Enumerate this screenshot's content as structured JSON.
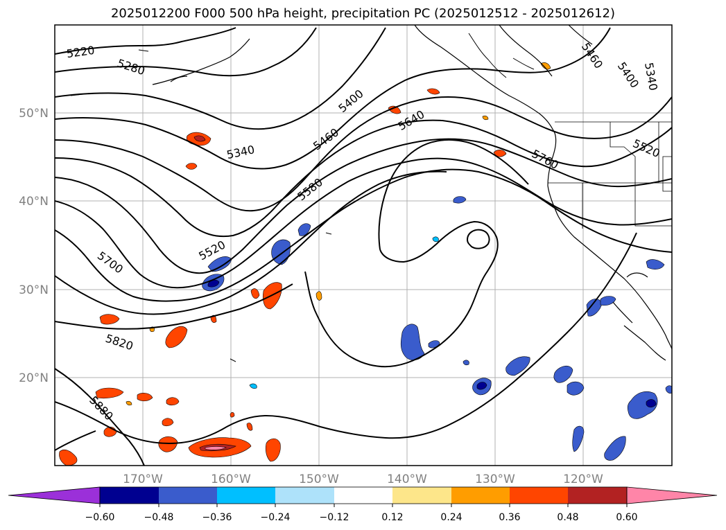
{
  "title": "2025012200 F000 500 hPa height, precipitation PC (2025012512 - 2025012612)",
  "map": {
    "lat_labels": [
      "50°N",
      "40°N",
      "30°N",
      "20°N"
    ],
    "lon_labels": [
      "170°W",
      "160°W",
      "150°W",
      "140°W",
      "130°W",
      "120°W"
    ],
    "contour_labels": [
      "5220",
      "5280",
      "5340",
      "5400",
      "5460",
      "5520",
      "5580",
      "5640",
      "5700",
      "5760",
      "5820",
      "5880",
      "5340",
      "5400",
      "5460",
      "5520"
    ],
    "colors": {
      "land_outline": "#000000",
      "grid": "#b0b0b0"
    }
  },
  "colorbar": {
    "tick_labels": [
      "−0.60",
      "−0.48",
      "−0.36",
      "−0.24",
      "−0.12",
      "0.12",
      "0.24",
      "0.36",
      "0.48",
      "0.60"
    ],
    "colors": [
      "#9b30d9",
      "#000090",
      "#3a5ccc",
      "#00bfff",
      "#aee2fa",
      "#ffffff",
      "#fde68a",
      "#ff9d00",
      "#ff4500",
      "#b22222",
      "#ff85a8"
    ]
  }
}
